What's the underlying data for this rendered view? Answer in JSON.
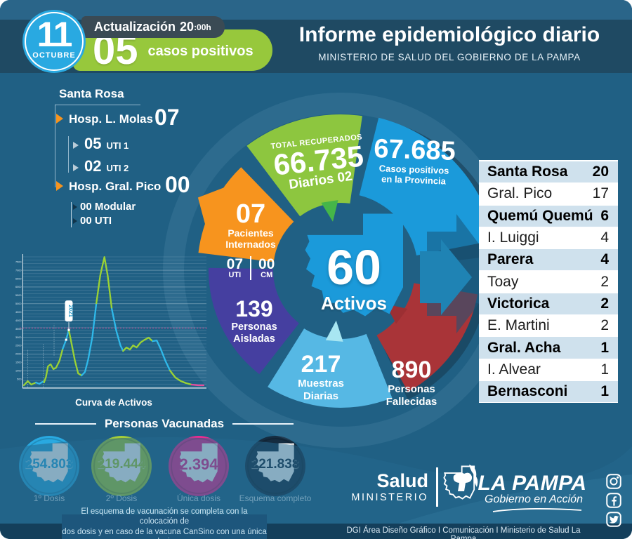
{
  "header": {
    "day": "11",
    "month": "OCTUBRE",
    "update_prefix": "Actualización",
    "update_time": "20",
    "update_suffix": ":00h",
    "daily_value": "05",
    "daily_label": "casos positivos",
    "title": "Informe epidemiológico diario",
    "subtitle": "MINISTERIO DE SALUD DEL GOBIERNO DE LA PAMPA"
  },
  "hospitals": {
    "region": "Santa Rosa",
    "items": [
      {
        "name": "Hosp. L. Molas",
        "value": "07",
        "subs": [
          {
            "value": "05",
            "label": "UTI 1"
          },
          {
            "value": "02",
            "label": "UTI 2"
          }
        ]
      },
      {
        "name": "Hosp. Gral. Pico",
        "value": "00",
        "subs": [
          {
            "value": "00",
            "label": "Modular"
          },
          {
            "value": "00",
            "label": "UTI"
          }
        ]
      }
    ]
  },
  "donut": {
    "center": {
      "value": "60",
      "label": "Activos",
      "color": "#1b9ada"
    },
    "segments": [
      {
        "id": "recuperados",
        "title": "TOTAL RECUPERADOS",
        "value": "66.735",
        "sub": "Diarios 02",
        "color": "#8dc63f"
      },
      {
        "id": "positivos",
        "value": "67.685",
        "label1": "Casos positivos",
        "label2": "en la Provincia",
        "color": "#1b9ada"
      },
      {
        "id": "internados",
        "value": "07",
        "label1": "Pacientes",
        "label2": "Internados",
        "uti_value": "07",
        "uti_label": "UTI",
        "cm_value": "00",
        "cm_label": "CM",
        "color": "#f7941e"
      },
      {
        "id": "aisladas",
        "value": "139",
        "label1": "Personas",
        "label2": "Aisladas",
        "color": "#453fa0"
      },
      {
        "id": "muestras",
        "value": "217",
        "label1": "Muestras",
        "label2": "Diarias",
        "color": "#56b8e4"
      },
      {
        "id": "fallecidos",
        "value": "890",
        "label1": "Personas",
        "label2": "Fallecidas",
        "color": "#a93438"
      }
    ]
  },
  "city_table": {
    "rows": [
      {
        "name": "Santa Rosa",
        "value": 20,
        "highlight": true
      },
      {
        "name": "Gral. Pico",
        "value": 17,
        "highlight": false
      },
      {
        "name": "Quemú Quemú",
        "value": 6,
        "highlight": true
      },
      {
        "name": "I. Luiggi",
        "value": 4,
        "highlight": false
      },
      {
        "name": "Parera",
        "value": 4,
        "highlight": true
      },
      {
        "name": "Toay",
        "value": 2,
        "highlight": false
      },
      {
        "name": "Victorica",
        "value": 2,
        "highlight": true
      },
      {
        "name": "E. Martini",
        "value": 2,
        "highlight": false
      },
      {
        "name": "Gral. Acha",
        "value": 1,
        "highlight": true
      },
      {
        "name": "I. Alvear",
        "value": 1,
        "highlight": false
      },
      {
        "name": "Bernasconi",
        "value": 1,
        "highlight": true
      }
    ]
  },
  "chart_data": {
    "type": "line",
    "title": "Curva de Activos",
    "ylim": [
      0,
      7800
    ],
    "gridline_step": 200,
    "ytick_step": 500,
    "threshold": {
      "value": 3550,
      "color": "#e84a9b",
      "style": "dashed"
    },
    "annotation": {
      "text": "2021",
      "at_percent": 25,
      "value": 3435
    },
    "marker": {
      "at_percent": 23.5,
      "value": 2849
    },
    "segments": [
      {
        "color": "#9bd234",
        "points": [
          [
            0,
            126
          ],
          [
            2.2,
            377
          ],
          [
            4.1,
            168
          ],
          [
            6.7,
            293
          ]
        ]
      },
      {
        "color": "#2fb9ea",
        "points": [
          [
            6.7,
            293
          ],
          [
            8.6,
            210
          ],
          [
            10.4,
            335
          ],
          [
            11.2,
            300
          ]
        ]
      },
      {
        "color": "#9bd234",
        "points": [
          [
            11.2,
            300
          ],
          [
            12.3,
            628
          ],
          [
            13.4,
            1257
          ],
          [
            14.9,
            1383
          ],
          [
            16.4,
            1089
          ],
          [
            17.9,
            1173
          ],
          [
            19.8,
            1592
          ],
          [
            21.6,
            2304
          ]
        ]
      },
      {
        "color": "#2fb9ea",
        "points": [
          [
            21.6,
            2304
          ],
          [
            23.5,
            2849
          ],
          [
            25,
            3435
          ]
        ]
      },
      {
        "color": "#9bd234",
        "points": [
          [
            25,
            3435
          ],
          [
            26.5,
            2639
          ],
          [
            28.4,
            1592
          ],
          [
            30.2,
            838
          ],
          [
            32.1,
            712
          ]
        ]
      },
      {
        "color": "#2fb9ea",
        "points": [
          [
            32.1,
            712
          ],
          [
            34,
            921
          ],
          [
            35.8,
            1676
          ],
          [
            38.1,
            3016
          ],
          [
            40.3,
            5027
          ]
        ]
      },
      {
        "color": "#9bd234",
        "points": [
          [
            40.3,
            5027
          ],
          [
            42.5,
            6703
          ],
          [
            44.8,
            7792
          ],
          [
            46.6,
            6703
          ],
          [
            48.9,
            4692
          ]
        ]
      },
      {
        "color": "#2fb9ea",
        "points": [
          [
            48.9,
            4692
          ],
          [
            51.5,
            3351
          ],
          [
            53.7,
            2513
          ],
          [
            55.2,
            2178
          ]
        ]
      },
      {
        "color": "#9bd234",
        "points": [
          [
            55.2,
            2178
          ],
          [
            57.1,
            2387
          ],
          [
            59,
            2262
          ],
          [
            60.8,
            2513
          ],
          [
            62.7,
            2387
          ],
          [
            64.9,
            2680
          ],
          [
            67.2,
            2849
          ],
          [
            69.4,
            2975
          ],
          [
            71.6,
            2765
          ]
        ]
      },
      {
        "color": "#2fb9ea",
        "points": [
          [
            71.6,
            2765
          ],
          [
            73.9,
            2807
          ],
          [
            76.1,
            2304
          ],
          [
            78.7,
            1592
          ],
          [
            81.3,
            1005
          ]
        ]
      },
      {
        "color": "#9bd234",
        "points": [
          [
            81.3,
            1005
          ],
          [
            84.3,
            586
          ],
          [
            87.3,
            377
          ],
          [
            90.3,
            251
          ],
          [
            93.3,
            168
          ]
        ]
      },
      {
        "color": "#e84a9b",
        "points": [
          [
            93.3,
            168
          ],
          [
            97,
            126
          ],
          [
            100,
            126
          ]
        ]
      }
    ]
  },
  "vaccination": {
    "title": "Personas Vacunadas",
    "items": [
      {
        "value": "254.803",
        "label": "1º Dosis",
        "color": "#29a9e1"
      },
      {
        "value": "219.444",
        "label": "2º Dosis",
        "color": "#a6ce39"
      },
      {
        "value": "2.394",
        "label": "Única dosis",
        "color": "#ec2c90"
      },
      {
        "value": "221.838",
        "label": "Esquema completo",
        "color": "#152c40"
      }
    ],
    "note_line1": "El esquema de vacunación se completa con la colocación de",
    "note_line2": "dos dosis y en caso de la vacuna CanSino con una única dosis"
  },
  "footer": {
    "ministry_top": "Salud",
    "ministry_bottom": "MINISTERIO",
    "gov_name": "LA PAMPA",
    "gov_slogan": "Gobierno en Acción",
    "credits": "DGI Área Diseño Gráfico  I Comunicación I Ministerio de Salud La Pampa"
  }
}
